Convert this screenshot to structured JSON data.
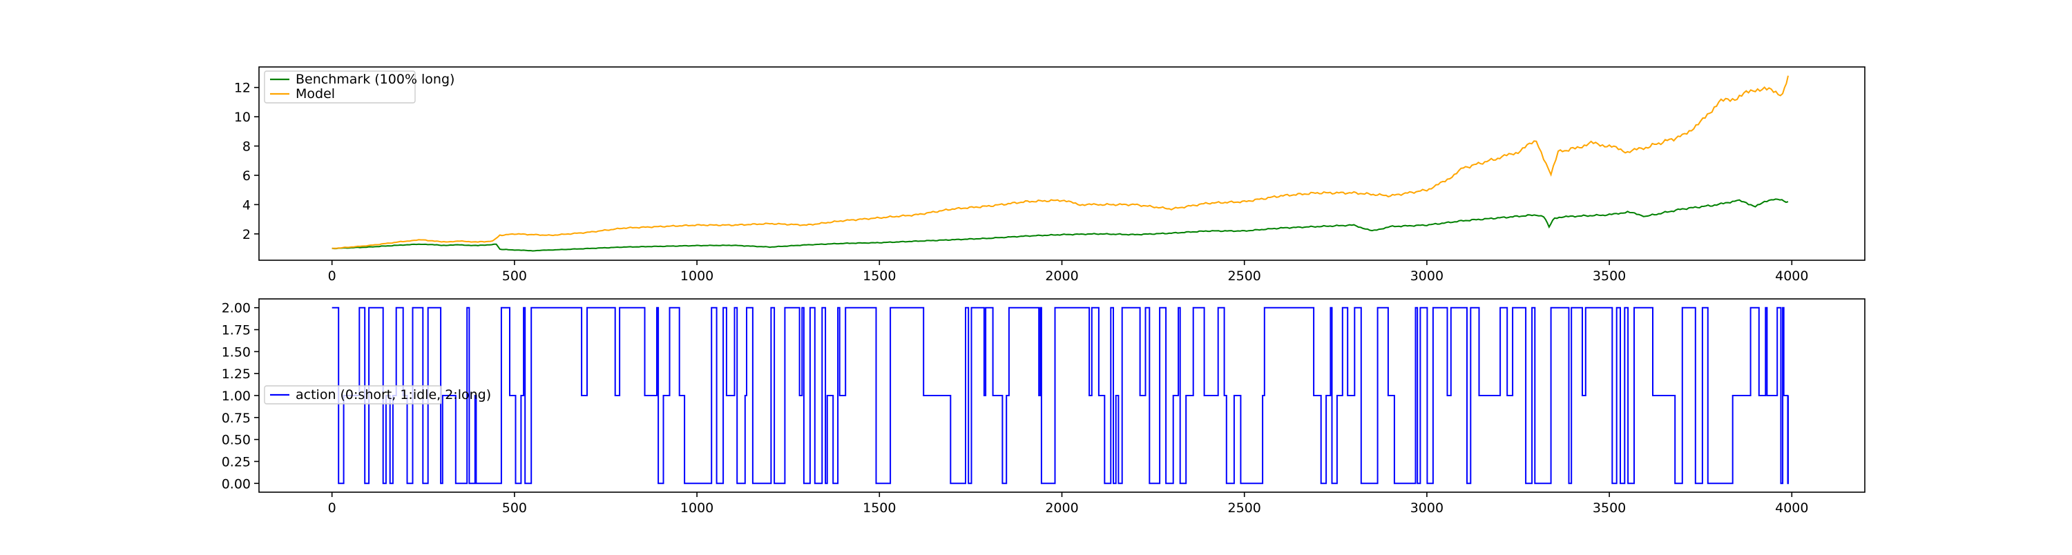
{
  "chart_data": [
    {
      "type": "line",
      "title": "",
      "xlabel": "",
      "ylabel": "",
      "xlim": [
        -200,
        4200
      ],
      "ylim": [
        0.2,
        13.4
      ],
      "xticks": [
        0,
        500,
        1000,
        1500,
        2000,
        2500,
        3000,
        3500,
        4000
      ],
      "yticks": [
        2,
        4,
        6,
        8,
        10,
        12
      ],
      "grid": false,
      "legend_position": "top-left",
      "series": [
        {
          "name": "Benchmark (100% long)",
          "color": "#008000",
          "x": [
            0,
            100,
            200,
            250,
            300,
            350,
            400,
            450,
            460,
            500,
            550,
            600,
            700,
            800,
            900,
            1000,
            1100,
            1200,
            1300,
            1400,
            1500,
            1600,
            1700,
            1800,
            1900,
            2000,
            2100,
            2200,
            2300,
            2400,
            2500,
            2600,
            2700,
            2800,
            2850,
            2900,
            3000,
            3100,
            3200,
            3300,
            3320,
            3335,
            3350,
            3400,
            3500,
            3550,
            3600,
            3700,
            3800,
            3850,
            3900,
            3950,
            3990
          ],
          "y": [
            1.0,
            1.1,
            1.25,
            1.3,
            1.22,
            1.25,
            1.2,
            1.3,
            0.95,
            0.9,
            0.85,
            0.9,
            1.0,
            1.1,
            1.15,
            1.2,
            1.22,
            1.1,
            1.25,
            1.35,
            1.4,
            1.5,
            1.6,
            1.7,
            1.85,
            1.95,
            2.0,
            1.95,
            2.05,
            2.2,
            2.2,
            2.4,
            2.5,
            2.6,
            2.2,
            2.5,
            2.6,
            2.9,
            3.1,
            3.3,
            3.2,
            2.5,
            3.1,
            3.2,
            3.3,
            3.5,
            3.2,
            3.7,
            4.0,
            4.3,
            3.9,
            4.4,
            4.2
          ]
        },
        {
          "name": "Model",
          "color": "#ffa500",
          "x": [
            0,
            100,
            200,
            250,
            300,
            350,
            400,
            440,
            460,
            500,
            600,
            700,
            800,
            900,
            1000,
            1100,
            1200,
            1300,
            1400,
            1500,
            1600,
            1700,
            1800,
            1900,
            2000,
            2050,
            2100,
            2200,
            2300,
            2400,
            2500,
            2600,
            2700,
            2800,
            2900,
            3000,
            3050,
            3100,
            3200,
            3250,
            3300,
            3320,
            3340,
            3360,
            3400,
            3450,
            3500,
            3550,
            3600,
            3700,
            3750,
            3800,
            3850,
            3900,
            3950,
            3975,
            3990
          ],
          "y": [
            1.0,
            1.2,
            1.5,
            1.6,
            1.45,
            1.5,
            1.45,
            1.5,
            1.9,
            2.0,
            1.9,
            2.1,
            2.4,
            2.5,
            2.6,
            2.6,
            2.7,
            2.6,
            2.9,
            3.1,
            3.3,
            3.7,
            3.9,
            4.2,
            4.3,
            4.0,
            4.0,
            4.0,
            3.7,
            4.1,
            4.2,
            4.6,
            4.8,
            4.8,
            4.6,
            5.0,
            5.6,
            6.5,
            7.2,
            7.6,
            8.4,
            7.2,
            6.1,
            7.6,
            7.8,
            8.2,
            8.0,
            7.6,
            7.9,
            8.7,
            9.6,
            11.0,
            11.3,
            11.9,
            11.8,
            11.5,
            12.8
          ]
        }
      ]
    },
    {
      "type": "line",
      "title": "",
      "xlabel": "",
      "ylabel": "",
      "xlim": [
        -200,
        4200
      ],
      "ylim": [
        -0.1,
        2.1
      ],
      "xticks": [
        0,
        500,
        1000,
        1500,
        2000,
        2500,
        3000,
        3500,
        4000
      ],
      "yticks": [
        "0.00",
        "0.25",
        "0.50",
        "0.75",
        "1.00",
        "1.25",
        "1.50",
        "1.75",
        "2.00"
      ],
      "grid": false,
      "legend_position": "center-left",
      "series": [
        {
          "name": "action (0:short, 1:idle, 2:long)",
          "color": "#0000ff",
          "x_range": [
            0,
            3990
          ],
          "values": [
            2
          ]
        }
      ]
    }
  ],
  "labels": {
    "benchmark": "Benchmark (100% long)",
    "model": "Model",
    "action": "action (0:short, 1:idle, 2:long)"
  }
}
